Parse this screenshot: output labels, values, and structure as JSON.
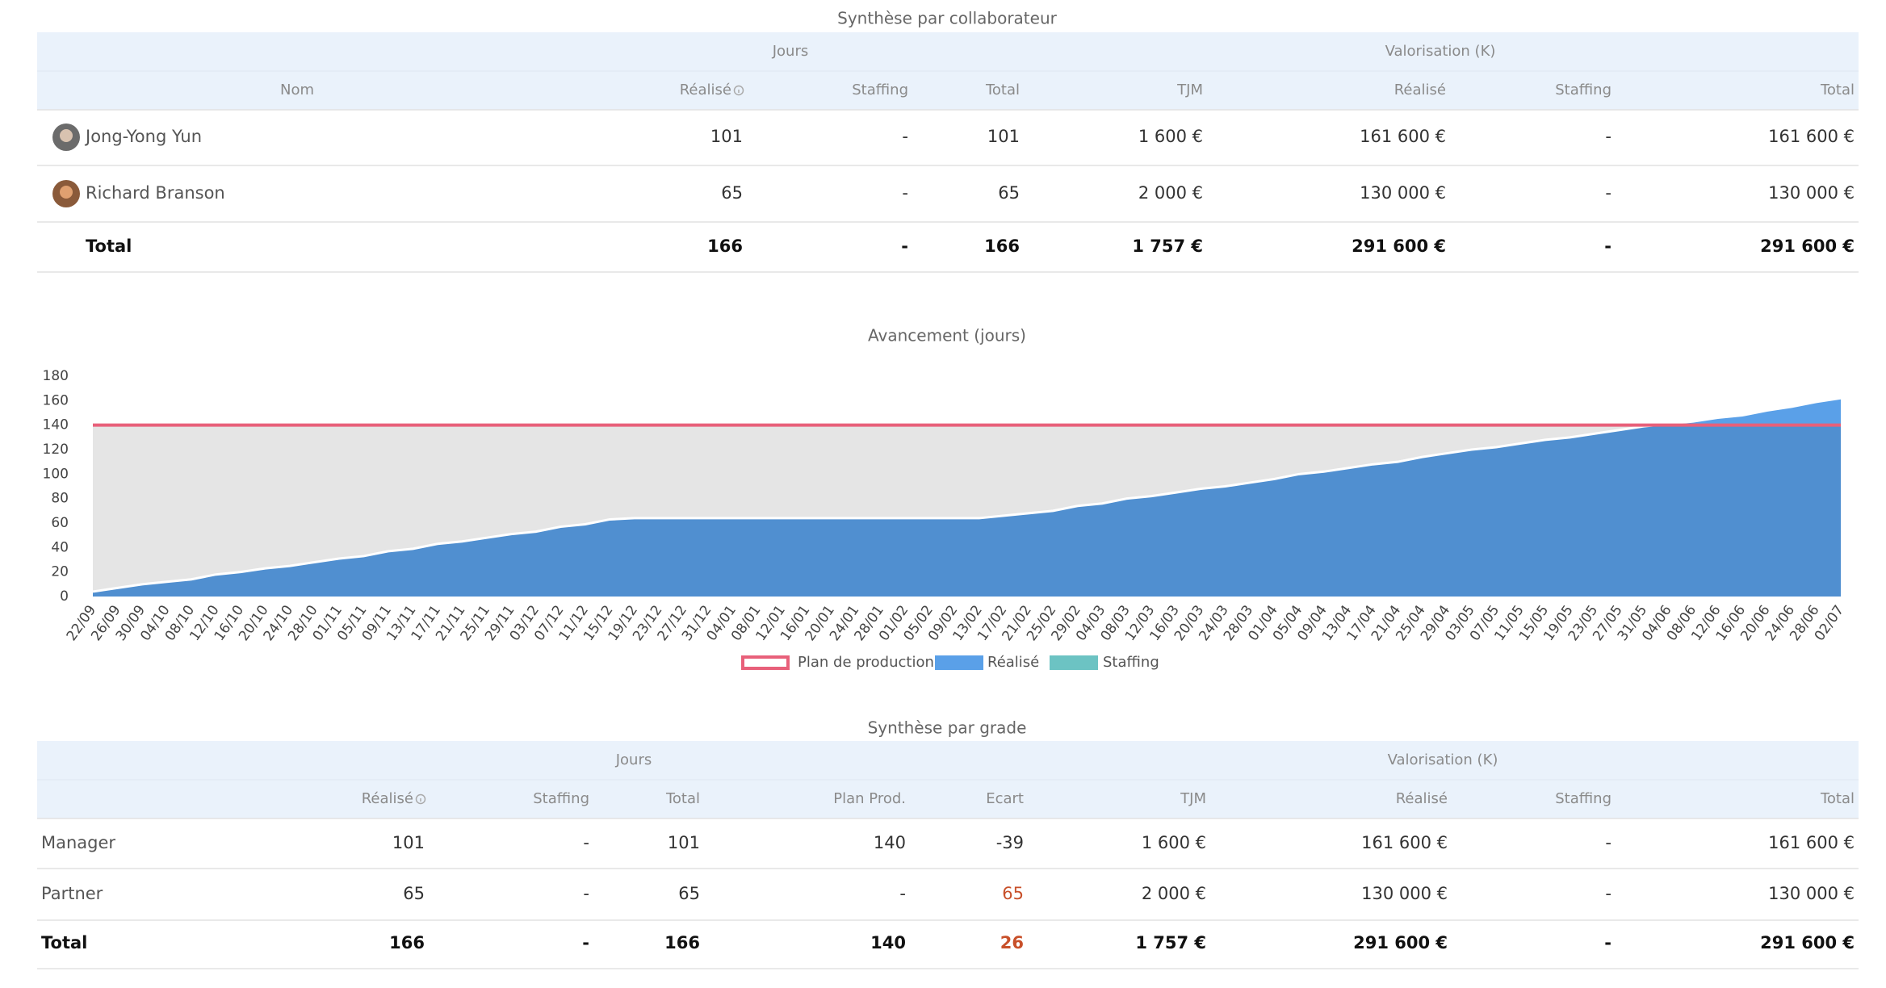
{
  "table1": {
    "title": "Synthèse par collaborateur",
    "groups": [
      "Jours",
      "Valorisation (K)"
    ],
    "columns": [
      "Nom",
      "Réalisé",
      "Staffing",
      "Total",
      "TJM",
      "Réalisé",
      "Staffing",
      "Total"
    ],
    "rows": [
      [
        "Jong-Yong Yun",
        "101",
        "-",
        "101",
        "1 600 €",
        "161 600 €",
        "-",
        "161 600 €"
      ],
      [
        "Richard Branson",
        "65",
        "-",
        "65",
        "2 000 €",
        "130 000 €",
        "-",
        "130 000 €"
      ]
    ],
    "total": [
      "Total",
      "166",
      "-",
      "166",
      "1 757 €",
      "291 600 €",
      "-",
      "291 600 €"
    ]
  },
  "chart_data": {
    "type": "area",
    "title": "Avancement (jours)",
    "categories": [
      "22/09",
      "26/09",
      "30/09",
      "04/10",
      "08/10",
      "12/10",
      "16/10",
      "20/10",
      "24/10",
      "28/10",
      "01/11",
      "05/11",
      "09/11",
      "13/11",
      "17/11",
      "21/11",
      "25/11",
      "29/11",
      "03/12",
      "07/12",
      "11/12",
      "15/12",
      "19/12",
      "23/12",
      "27/12",
      "31/12",
      "04/01",
      "08/01",
      "12/01",
      "16/01",
      "20/01",
      "24/01",
      "28/01",
      "01/02",
      "05/02",
      "09/02",
      "13/02",
      "17/02",
      "21/02",
      "25/02",
      "29/02",
      "04/03",
      "08/03",
      "12/03",
      "16/03",
      "20/03",
      "24/03",
      "28/03",
      "01/04",
      "05/04",
      "09/04",
      "13/04",
      "17/04",
      "21/04",
      "25/04",
      "29/04",
      "03/05",
      "07/05",
      "11/05",
      "15/05",
      "19/05",
      "23/05",
      "27/05",
      "31/05",
      "04/06",
      "08/06",
      "12/06",
      "16/06",
      "20/06",
      "24/06",
      "28/06",
      "02/07"
    ],
    "series": [
      {
        "name": "Plan de production",
        "color": "#e8607a",
        "values": [
          140,
          140,
          140,
          140,
          140,
          140,
          140,
          140,
          140,
          140,
          140,
          140,
          140,
          140,
          140,
          140,
          140,
          140,
          140,
          140,
          140,
          140,
          140,
          140,
          140,
          140,
          140,
          140,
          140,
          140,
          140,
          140,
          140,
          140,
          140,
          140,
          140,
          140,
          140,
          140,
          140,
          140,
          140,
          140,
          140,
          140,
          140,
          140,
          140,
          140,
          140,
          140,
          140,
          140,
          140,
          140,
          140,
          140,
          140,
          140,
          140,
          140,
          140,
          140,
          140,
          140,
          140,
          140,
          140,
          140,
          140,
          140
        ]
      },
      {
        "name": "Réalisé",
        "color": "#5aa0e8",
        "values": [
          4,
          7,
          10,
          12,
          14,
          18,
          20,
          23,
          25,
          28,
          31,
          33,
          37,
          39,
          43,
          45,
          48,
          51,
          53,
          57,
          59,
          63,
          64,
          64,
          64,
          64,
          64,
          64,
          64,
          64,
          64,
          64,
          64,
          64,
          64,
          64,
          64,
          66,
          68,
          70,
          74,
          76,
          80,
          82,
          85,
          88,
          90,
          93,
          96,
          100,
          102,
          105,
          108,
          110,
          114,
          117,
          120,
          122,
          125,
          128,
          130,
          133,
          136,
          139,
          141,
          143,
          146,
          148,
          152,
          155,
          159,
          162
        ]
      },
      {
        "name": "Staffing",
        "color": "#6cc3c3",
        "values": [
          0,
          0,
          0,
          0,
          0,
          0,
          0,
          0,
          0,
          0,
          0,
          0,
          0,
          0,
          0,
          0,
          0,
          0,
          0,
          0,
          0,
          0,
          0,
          0,
          0,
          0,
          0,
          0,
          0,
          0,
          0,
          0,
          0,
          0,
          0,
          0,
          0,
          0,
          0,
          0,
          0,
          0,
          0,
          0,
          0,
          0,
          0,
          0,
          0,
          0,
          0,
          0,
          0,
          0,
          0,
          0,
          0,
          0,
          0,
          0,
          0,
          0,
          0,
          0,
          0,
          0,
          0,
          0,
          0,
          0,
          0,
          0
        ]
      }
    ],
    "ylim": [
      0,
      180
    ],
    "yticks": [
      0,
      20,
      40,
      60,
      80,
      100,
      120,
      140,
      160,
      180
    ],
    "legend": "bottom"
  },
  "table2": {
    "title": "Synthèse par grade",
    "groups": [
      "Jours",
      "Valorisation (K)"
    ],
    "columns": [
      "Réalisé",
      "Staffing",
      "Total",
      "Plan Prod.",
      "Ecart",
      "TJM",
      "Réalisé",
      "Staffing",
      "Total"
    ],
    "alert_color": "#c8502a",
    "rows": [
      [
        "Manager",
        "101",
        "-",
        "101",
        "140",
        "-39",
        "1 600 €",
        "161 600 €",
        "-",
        "161 600 €"
      ],
      [
        "Partner",
        "65",
        "-",
        "65",
        "-",
        {
          "text": "65",
          "alert": true
        },
        "2 000 €",
        "130 000 €",
        "-",
        "130 000 €"
      ]
    ],
    "total": [
      "Total",
      "166",
      "-",
      "166",
      "140",
      {
        "text": "26",
        "alert": true
      },
      "1 757 €",
      "291 600 €",
      "-",
      "291 600 €"
    ]
  }
}
